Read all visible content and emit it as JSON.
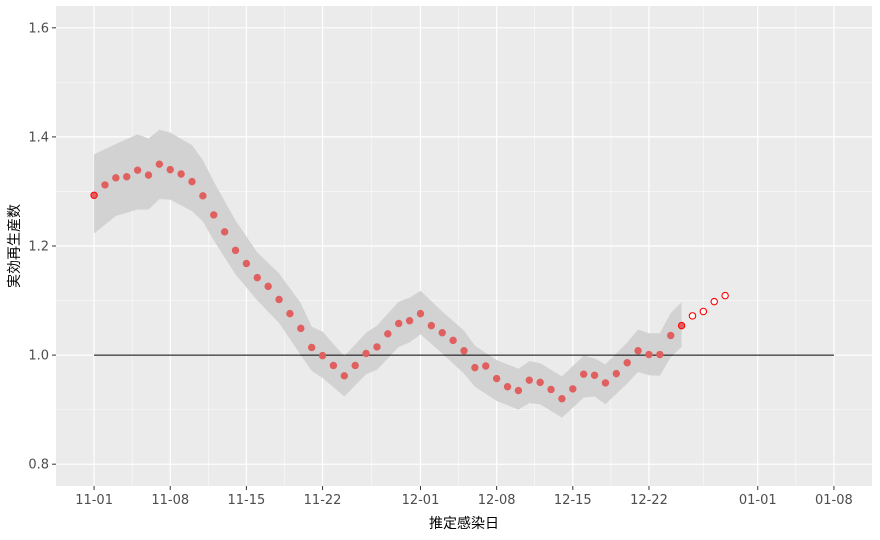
{
  "chart_data": {
    "type": "scatter",
    "xlabel": "推定感染日",
    "ylabel": "実効再生産数",
    "x_ticks": [
      "11-01",
      "11-08",
      "11-15",
      "11-22",
      "12-01",
      "12-08",
      "12-15",
      "12-22",
      "01-01",
      "01-08"
    ],
    "x_tick_days": [
      0,
      7,
      14,
      21,
      30,
      37,
      44,
      51,
      61,
      68
    ],
    "xlim_days": [
      -3.5,
      71.5
    ],
    "x_axis_start": "2020-11-01",
    "y_ticks": [
      "0.8",
      "1.0",
      "1.2",
      "1.4",
      "1.6"
    ],
    "ylim": [
      0.76,
      1.64
    ],
    "reference_line": {
      "y": 1.0,
      "from_day": 0,
      "to_day": 68
    },
    "series": [
      {
        "style": "filled",
        "points": [
          {
            "x": "11-01",
            "y": 1.293
          },
          {
            "x": "11-02",
            "y": 1.312
          },
          {
            "x": "11-03",
            "y": 1.325
          },
          {
            "x": "11-04",
            "y": 1.327
          },
          {
            "x": "11-05",
            "y": 1.339
          },
          {
            "x": "11-06",
            "y": 1.33
          },
          {
            "x": "11-07",
            "y": 1.35
          },
          {
            "x": "11-08",
            "y": 1.34
          },
          {
            "x": "11-09",
            "y": 1.332
          },
          {
            "x": "11-10",
            "y": 1.318
          },
          {
            "x": "11-11",
            "y": 1.292
          },
          {
            "x": "11-12",
            "y": 1.257
          },
          {
            "x": "11-13",
            "y": 1.226
          },
          {
            "x": "11-14",
            "y": 1.192
          },
          {
            "x": "11-15",
            "y": 1.168
          },
          {
            "x": "11-16",
            "y": 1.142
          },
          {
            "x": "11-17",
            "y": 1.126
          },
          {
            "x": "11-18",
            "y": 1.102
          },
          {
            "x": "11-19",
            "y": 1.076
          },
          {
            "x": "11-20",
            "y": 1.049
          },
          {
            "x": "11-21",
            "y": 1.014
          },
          {
            "x": "11-22",
            "y": 0.999
          },
          {
            "x": "11-23",
            "y": 0.981
          },
          {
            "x": "11-24",
            "y": 0.962
          },
          {
            "x": "11-25",
            "y": 0.981
          },
          {
            "x": "11-26",
            "y": 1.003
          },
          {
            "x": "11-27",
            "y": 1.015
          },
          {
            "x": "11-28",
            "y": 1.039
          },
          {
            "x": "11-29",
            "y": 1.058
          },
          {
            "x": "11-30",
            "y": 1.063
          },
          {
            "x": "12-01",
            "y": 1.076
          },
          {
            "x": "12-02",
            "y": 1.054
          },
          {
            "x": "12-03",
            "y": 1.041
          },
          {
            "x": "12-04",
            "y": 1.027
          },
          {
            "x": "12-05",
            "y": 1.008
          },
          {
            "x": "12-06",
            "y": 0.977
          },
          {
            "x": "12-07",
            "y": 0.98
          },
          {
            "x": "12-08",
            "y": 0.957
          },
          {
            "x": "12-09",
            "y": 0.942
          },
          {
            "x": "12-10",
            "y": 0.935
          },
          {
            "x": "12-11",
            "y": 0.954
          },
          {
            "x": "12-12",
            "y": 0.95
          },
          {
            "x": "12-13",
            "y": 0.937
          },
          {
            "x": "12-14",
            "y": 0.92
          },
          {
            "x": "12-15",
            "y": 0.938
          },
          {
            "x": "12-16",
            "y": 0.965
          },
          {
            "x": "12-17",
            "y": 0.963
          },
          {
            "x": "12-18",
            "y": 0.949
          },
          {
            "x": "12-19",
            "y": 0.966
          },
          {
            "x": "12-20",
            "y": 0.986
          },
          {
            "x": "12-21",
            "y": 1.008
          },
          {
            "x": "12-22",
            "y": 1.001
          },
          {
            "x": "12-23",
            "y": 1.001
          },
          {
            "x": "12-24",
            "y": 1.036
          },
          {
            "x": "12-25",
            "y": 1.054
          }
        ]
      },
      {
        "style": "hollow",
        "points": [
          {
            "x": "12-26",
            "y": 1.072
          },
          {
            "x": "12-27",
            "y": 1.08
          },
          {
            "x": "12-28",
            "y": 1.098
          },
          {
            "x": "12-29",
            "y": 1.109
          }
        ]
      }
    ],
    "confidence_band": [
      {
        "x": "11-01",
        "lo": 1.223,
        "hi": 1.368
      },
      {
        "x": "11-03",
        "lo": 1.255,
        "hi": 1.387
      },
      {
        "x": "11-05",
        "lo": 1.267,
        "hi": 1.405
      },
      {
        "x": "11-06",
        "lo": 1.267,
        "hi": 1.397
      },
      {
        "x": "11-07",
        "lo": 1.286,
        "hi": 1.413
      },
      {
        "x": "11-08",
        "lo": 1.285,
        "hi": 1.408
      },
      {
        "x": "11-10",
        "lo": 1.264,
        "hi": 1.385
      },
      {
        "x": "11-11",
        "lo": 1.245,
        "hi": 1.357
      },
      {
        "x": "11-12",
        "lo": 1.21,
        "hi": 1.318
      },
      {
        "x": "11-14",
        "lo": 1.148,
        "hi": 1.247
      },
      {
        "x": "11-16",
        "lo": 1.1,
        "hi": 1.188
      },
      {
        "x": "11-18",
        "lo": 1.059,
        "hi": 1.15
      },
      {
        "x": "11-20",
        "lo": 1.0,
        "hi": 1.095
      },
      {
        "x": "11-21",
        "lo": 0.971,
        "hi": 1.052
      },
      {
        "x": "11-22",
        "lo": 0.958,
        "hi": 1.043
      },
      {
        "x": "11-24",
        "lo": 0.924,
        "hi": 0.998
      },
      {
        "x": "11-26",
        "lo": 0.965,
        "hi": 1.041
      },
      {
        "x": "11-27",
        "lo": 0.973,
        "hi": 1.054
      },
      {
        "x": "11-29",
        "lo": 1.015,
        "hi": 1.098
      },
      {
        "x": "11-30",
        "lo": 1.023,
        "hi": 1.105
      },
      {
        "x": "12-01",
        "lo": 1.038,
        "hi": 1.118
      },
      {
        "x": "12-03",
        "lo": 1.003,
        "hi": 1.08
      },
      {
        "x": "12-05",
        "lo": 0.966,
        "hi": 1.045
      },
      {
        "x": "12-06",
        "lo": 0.942,
        "hi": 1.017
      },
      {
        "x": "12-08",
        "lo": 0.916,
        "hi": 0.991
      },
      {
        "x": "12-10",
        "lo": 0.9,
        "hi": 0.975
      },
      {
        "x": "12-11",
        "lo": 0.912,
        "hi": 0.989
      },
      {
        "x": "12-12",
        "lo": 0.91,
        "hi": 0.985
      },
      {
        "x": "12-14",
        "lo": 0.885,
        "hi": 0.961
      },
      {
        "x": "12-16",
        "lo": 0.922,
        "hi": 0.999
      },
      {
        "x": "12-17",
        "lo": 0.924,
        "hi": 0.994
      },
      {
        "x": "12-18",
        "lo": 0.91,
        "hi": 0.983
      },
      {
        "x": "12-20",
        "lo": 0.948,
        "hi": 1.023
      },
      {
        "x": "12-21",
        "lo": 0.969,
        "hi": 1.047
      },
      {
        "x": "12-22",
        "lo": 0.963,
        "hi": 1.04
      },
      {
        "x": "12-23",
        "lo": 0.962,
        "hi": 1.04
      },
      {
        "x": "12-24",
        "lo": 0.996,
        "hi": 1.077
      },
      {
        "x": "12-25",
        "lo": 1.015,
        "hi": 1.097
      }
    ],
    "grid": true,
    "colors": {
      "panel_bg": "#ebebeb",
      "grid_major": "#ffffff",
      "point_fill": "#e06060",
      "point_edge_current": "#ff0000",
      "band": "#d2d2d2",
      "reference_line": "#000000"
    }
  }
}
